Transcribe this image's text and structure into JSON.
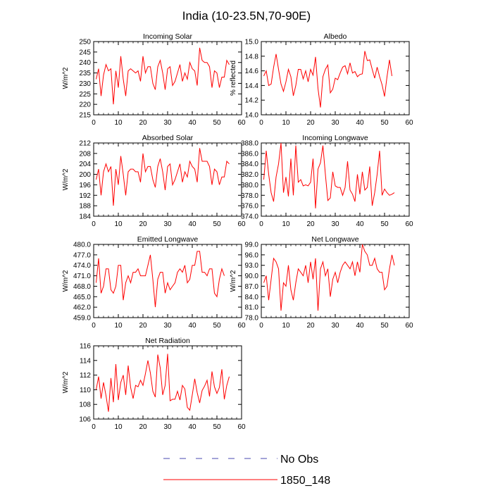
{
  "title": "India (10-23.5N,70-90E)",
  "legend": {
    "items": [
      {
        "label": "No Obs",
        "color": "#4a4ab0",
        "style": "dashed"
      },
      {
        "label": "1850_148",
        "color": "#ff0000",
        "style": "solid"
      }
    ]
  },
  "chart_data": [
    {
      "type": "line",
      "title": "Incoming Solar",
      "ylabel": "W/m^2",
      "xlabel": "",
      "xlim": [
        0,
        60
      ],
      "ylim": [
        215,
        250
      ],
      "xticks": [
        0,
        10,
        20,
        30,
        40,
        50,
        60
      ],
      "xtick_labels": [
        "0",
        "10",
        "20",
        "30",
        "40",
        "50",
        "60"
      ],
      "yticks": [
        215,
        220,
        225,
        230,
        235,
        240,
        245,
        250
      ],
      "ytick_labels": [
        "215",
        "220",
        "225",
        "230",
        "235",
        "240",
        "245",
        "250"
      ],
      "series": [
        {
          "name": "1850_148",
          "color": "#ff0000",
          "x_start": 1,
          "values": [
            232,
            237,
            224,
            234,
            239,
            236,
            237,
            220,
            236,
            228,
            243,
            232,
            224,
            236,
            237,
            236,
            235,
            236,
            231,
            243,
            235,
            238,
            238,
            230,
            227,
            238,
            241,
            235,
            227,
            237,
            238,
            229,
            231,
            235,
            239,
            231,
            235,
            232,
            240,
            237,
            236,
            229,
            247,
            241,
            240,
            240,
            238,
            228,
            236,
            235,
            228,
            233,
            233,
            241,
            239
          ]
        }
      ]
    },
    {
      "type": "line",
      "title": "Albedo",
      "ylabel": "% reflected",
      "xlabel": "",
      "xlim": [
        0,
        60
      ],
      "ylim": [
        14.0,
        15.0
      ],
      "xticks": [
        0,
        10,
        20,
        30,
        40,
        50,
        60
      ],
      "xtick_labels": [
        "0",
        "10",
        "20",
        "30",
        "40",
        "50",
        "60"
      ],
      "yticks": [
        14.0,
        14.2,
        14.4,
        14.6,
        14.8,
        15.0
      ],
      "ytick_labels": [
        "14.0",
        "14.2",
        "14.4",
        "14.6",
        "14.8",
        "15.0"
      ],
      "series": [
        {
          "name": "1850_148",
          "color": "#ff0000",
          "x_start": 1,
          "values": [
            14.53,
            14.6,
            14.4,
            14.42,
            14.65,
            14.83,
            14.62,
            14.42,
            14.32,
            14.45,
            14.62,
            14.52,
            14.26,
            14.4,
            14.62,
            14.62,
            14.49,
            14.6,
            14.45,
            14.62,
            14.54,
            14.79,
            14.36,
            14.1,
            14.52,
            14.62,
            14.68,
            14.3,
            14.35,
            14.5,
            14.48,
            14.57,
            14.65,
            14.67,
            14.56,
            14.71,
            14.57,
            14.59,
            14.52,
            14.55,
            14.56,
            14.87,
            14.74,
            14.75,
            14.62,
            14.5,
            14.65,
            14.52,
            14.41,
            14.25,
            14.52,
            14.75,
            14.53
          ]
        }
      ]
    },
    {
      "type": "line",
      "title": "Absorbed Solar",
      "ylabel": "W/m^2",
      "xlabel": "",
      "xlim": [
        0,
        60
      ],
      "ylim": [
        184,
        212
      ],
      "xticks": [
        0,
        10,
        20,
        30,
        40,
        50,
        60
      ],
      "xtick_labels": [
        "0",
        "10",
        "20",
        "30",
        "40",
        "50",
        "60"
      ],
      "yticks": [
        184,
        188,
        192,
        196,
        200,
        204,
        208,
        212
      ],
      "ytick_labels": [
        "184",
        "188",
        "192",
        "196",
        "200",
        "204",
        "208",
        "212"
      ],
      "series": [
        {
          "name": "1850_148",
          "color": "#ff0000",
          "x_start": 1,
          "values": [
            198,
            202,
            192,
            201,
            204,
            201,
            203,
            188,
            202,
            196,
            207,
            200,
            192,
            201,
            202,
            202,
            201,
            201,
            197,
            208,
            201,
            203,
            203,
            198,
            195,
            203,
            206,
            201,
            194,
            203,
            204,
            196,
            198,
            201,
            204,
            197,
            201,
            199,
            205,
            203,
            202,
            197,
            210,
            205,
            205,
            205,
            203,
            196,
            202,
            201,
            196,
            199,
            199,
            205,
            204
          ]
        }
      ]
    },
    {
      "type": "line",
      "title": "Incoming Longwave",
      "ylabel": "",
      "xlabel": "",
      "xlim": [
        0,
        60
      ],
      "ylim": [
        374.0,
        388.0
      ],
      "xticks": [
        0,
        10,
        20,
        30,
        40,
        50,
        60
      ],
      "xtick_labels": [
        "0",
        "10",
        "20",
        "30",
        "40",
        "50",
        "60"
      ],
      "yticks": [
        374.0,
        376.0,
        378.0,
        380.0,
        382.0,
        384.0,
        386.0,
        388.0
      ],
      "ytick_labels": [
        "374.0",
        "376.0",
        "378.0",
        "380.0",
        "382.0",
        "384.0",
        "386.0",
        "388.0"
      ],
      "series": [
        {
          "name": "1850_148",
          "color": "#ff0000",
          "x_start": 1,
          "values": [
            381.0,
            386.5,
            382.0,
            378.5,
            376.8,
            381.5,
            384.0,
            388.0,
            378.5,
            381.5,
            377.8,
            385.0,
            378.0,
            387.5,
            380.5,
            381.0,
            379.8,
            380.0,
            379.8,
            380.5,
            385.0,
            375.5,
            383.0,
            384.2,
            387.5,
            382.0,
            377.0,
            377.5,
            382.5,
            379.8,
            379.5,
            379.5,
            378.0,
            379.5,
            384.5,
            379.0,
            378.2,
            376.8,
            382.0,
            378.2,
            382.5,
            379.0,
            379.5,
            383.5,
            376.0,
            378.5,
            382.0,
            386.5,
            378.0,
            379.2,
            378.5,
            378.0,
            378.2,
            378.5
          ]
        }
      ]
    },
    {
      "type": "line",
      "title": "Emitted Longwave",
      "ylabel": "W/m^2",
      "xlabel": "",
      "xlim": [
        0,
        60
      ],
      "ylim": [
        459.0,
        480.0
      ],
      "xticks": [
        0,
        10,
        20,
        30,
        40,
        50,
        60
      ],
      "xtick_labels": [
        "0",
        "10",
        "20",
        "30",
        "40",
        "50",
        "60"
      ],
      "yticks": [
        459.0,
        462.0,
        465.0,
        468.0,
        471.0,
        474.0,
        477.0,
        480.0
      ],
      "ytick_labels": [
        "459.0",
        "462.0",
        "465.0",
        "468.0",
        "471.0",
        "474.0",
        "477.0",
        "480.0"
      ],
      "series": [
        {
          "name": "1850_148",
          "color": "#ff0000",
          "x_start": 1,
          "values": [
            469,
            476,
            466,
            468,
            473,
            473,
            467,
            466,
            468,
            474,
            474,
            464,
            469,
            471,
            469,
            472,
            472,
            473,
            471,
            471,
            471,
            474,
            477,
            470,
            462,
            470,
            472,
            472,
            466,
            469,
            467,
            468,
            469,
            472,
            473,
            472,
            474,
            469,
            470,
            474,
            474,
            478,
            478,
            472,
            472,
            471,
            473,
            473,
            466,
            465,
            470,
            473,
            471
          ]
        }
      ]
    },
    {
      "type": "line",
      "title": "Net Longwave",
      "ylabel": "W/m^2",
      "xlabel": "",
      "xlim": [
        0,
        60
      ],
      "ylim": [
        78.0,
        99.0
      ],
      "xticks": [
        0,
        10,
        20,
        30,
        40,
        50,
        60
      ],
      "xtick_labels": [
        "0",
        "10",
        "20",
        "30",
        "40",
        "50",
        "60"
      ],
      "yticks": [
        78.0,
        81.0,
        84.0,
        87.0,
        90.0,
        93.0,
        96.0,
        99.0
      ],
      "ytick_labels": [
        "78.0",
        "81.0",
        "84.0",
        "87.0",
        "90.0",
        "93.0",
        "96.0",
        "99.0"
      ],
      "series": [
        {
          "name": "1850_148",
          "color": "#ff0000",
          "x_start": 1,
          "values": [
            88,
            90,
            83,
            89,
            95,
            94,
            92,
            80,
            88,
            87,
            93,
            86,
            83,
            88,
            92,
            91,
            90,
            93,
            88,
            94,
            89,
            95,
            80,
            92,
            94,
            90,
            92,
            84,
            89,
            91,
            88,
            91,
            93,
            94,
            93,
            92,
            94,
            90,
            94,
            91,
            99,
            97,
            96,
            93,
            93,
            95,
            92,
            91,
            91,
            86,
            87,
            92,
            96,
            93
          ]
        }
      ]
    },
    {
      "type": "line",
      "title": "Net Radiation",
      "ylabel": "W/m^2",
      "xlabel": "",
      "xlim": [
        0,
        60
      ],
      "ylim": [
        106,
        116
      ],
      "xticks": [
        0,
        10,
        20,
        30,
        40,
        50,
        60
      ],
      "xtick_labels": [
        "0",
        "10",
        "20",
        "30",
        "40",
        "50",
        "60"
      ],
      "yticks": [
        106,
        108,
        110,
        112,
        114,
        116
      ],
      "ytick_labels": [
        "106",
        "108",
        "110",
        "112",
        "114",
        "116"
      ],
      "series": [
        {
          "name": "1850_148",
          "color": "#ff0000",
          "x_start": 1,
          "values": [
            110.0,
            111.8,
            108.8,
            111.0,
            109.2,
            107.0,
            111.6,
            108.3,
            113.5,
            108.6,
            111.0,
            112.0,
            109.3,
            113.3,
            110.3,
            108.8,
            110.6,
            110.4,
            111.3,
            110.6,
            112.2,
            114.0,
            112.3,
            109.8,
            109.0,
            114.8,
            113.0,
            109.3,
            110.6,
            114.9,
            108.5,
            108.7,
            108.7,
            109.8,
            108.6,
            110.6,
            110.1,
            107.6,
            107.2,
            109.3,
            111.5,
            109.6,
            108.2,
            109.9,
            110.5,
            111.3,
            109.1,
            112.5,
            110.4,
            109.5,
            110.3,
            112.8,
            108.7,
            110.6,
            111.8
          ]
        }
      ]
    }
  ]
}
